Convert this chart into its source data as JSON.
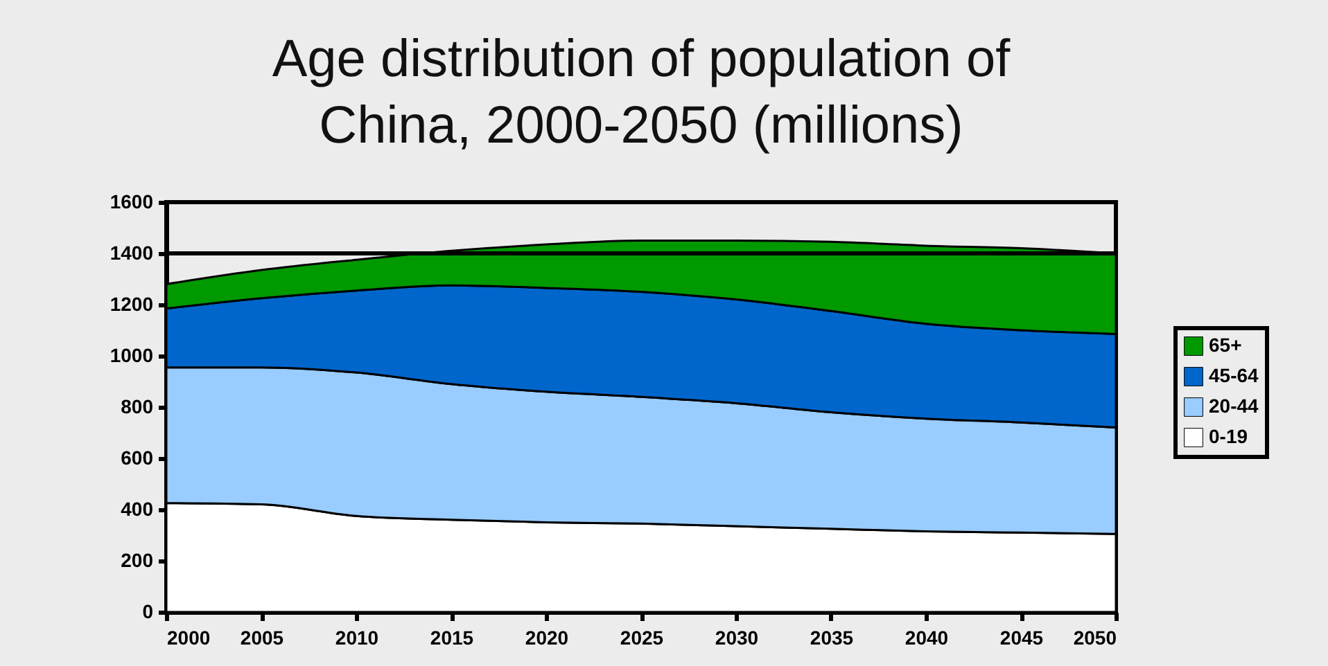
{
  "chart_data": {
    "type": "area",
    "title": "Age distribution of population of\nChina, 2000-2050 (millions)",
    "x": [
      2000,
      2005,
      2010,
      2015,
      2020,
      2025,
      2030,
      2035,
      2040,
      2045,
      2050
    ],
    "xlim": [
      2000,
      2050
    ],
    "xticks": [
      2000,
      2005,
      2010,
      2015,
      2020,
      2025,
      2030,
      2035,
      2040,
      2045,
      2050
    ],
    "ylim": [
      0,
      1600
    ],
    "yticks": [
      0,
      200,
      400,
      600,
      800,
      1000,
      1200,
      1400,
      1600
    ],
    "stacked": true,
    "grid": false,
    "legend": "right",
    "series": [
      {
        "name": "0-19",
        "color": "#ffffff",
        "values": [
          425,
          420,
          375,
          360,
          350,
          345,
          335,
          325,
          315,
          310,
          305
        ]
      },
      {
        "name": "20-44",
        "color": "#99ccff",
        "values": [
          530,
          535,
          560,
          530,
          510,
          495,
          480,
          455,
          440,
          430,
          415
        ]
      },
      {
        "name": "45-64",
        "color": "#0066cc",
        "values": [
          230,
          270,
          320,
          385,
          405,
          410,
          405,
          395,
          370,
          360,
          365
        ]
      },
      {
        "name": "65+",
        "color": "#009900",
        "values": [
          95,
          110,
          120,
          135,
          170,
          200,
          230,
          270,
          305,
          320,
          315
        ]
      }
    ],
    "ref_lines": [
      {
        "axis": "y",
        "value": 1400,
        "color": "#000000"
      }
    ]
  }
}
